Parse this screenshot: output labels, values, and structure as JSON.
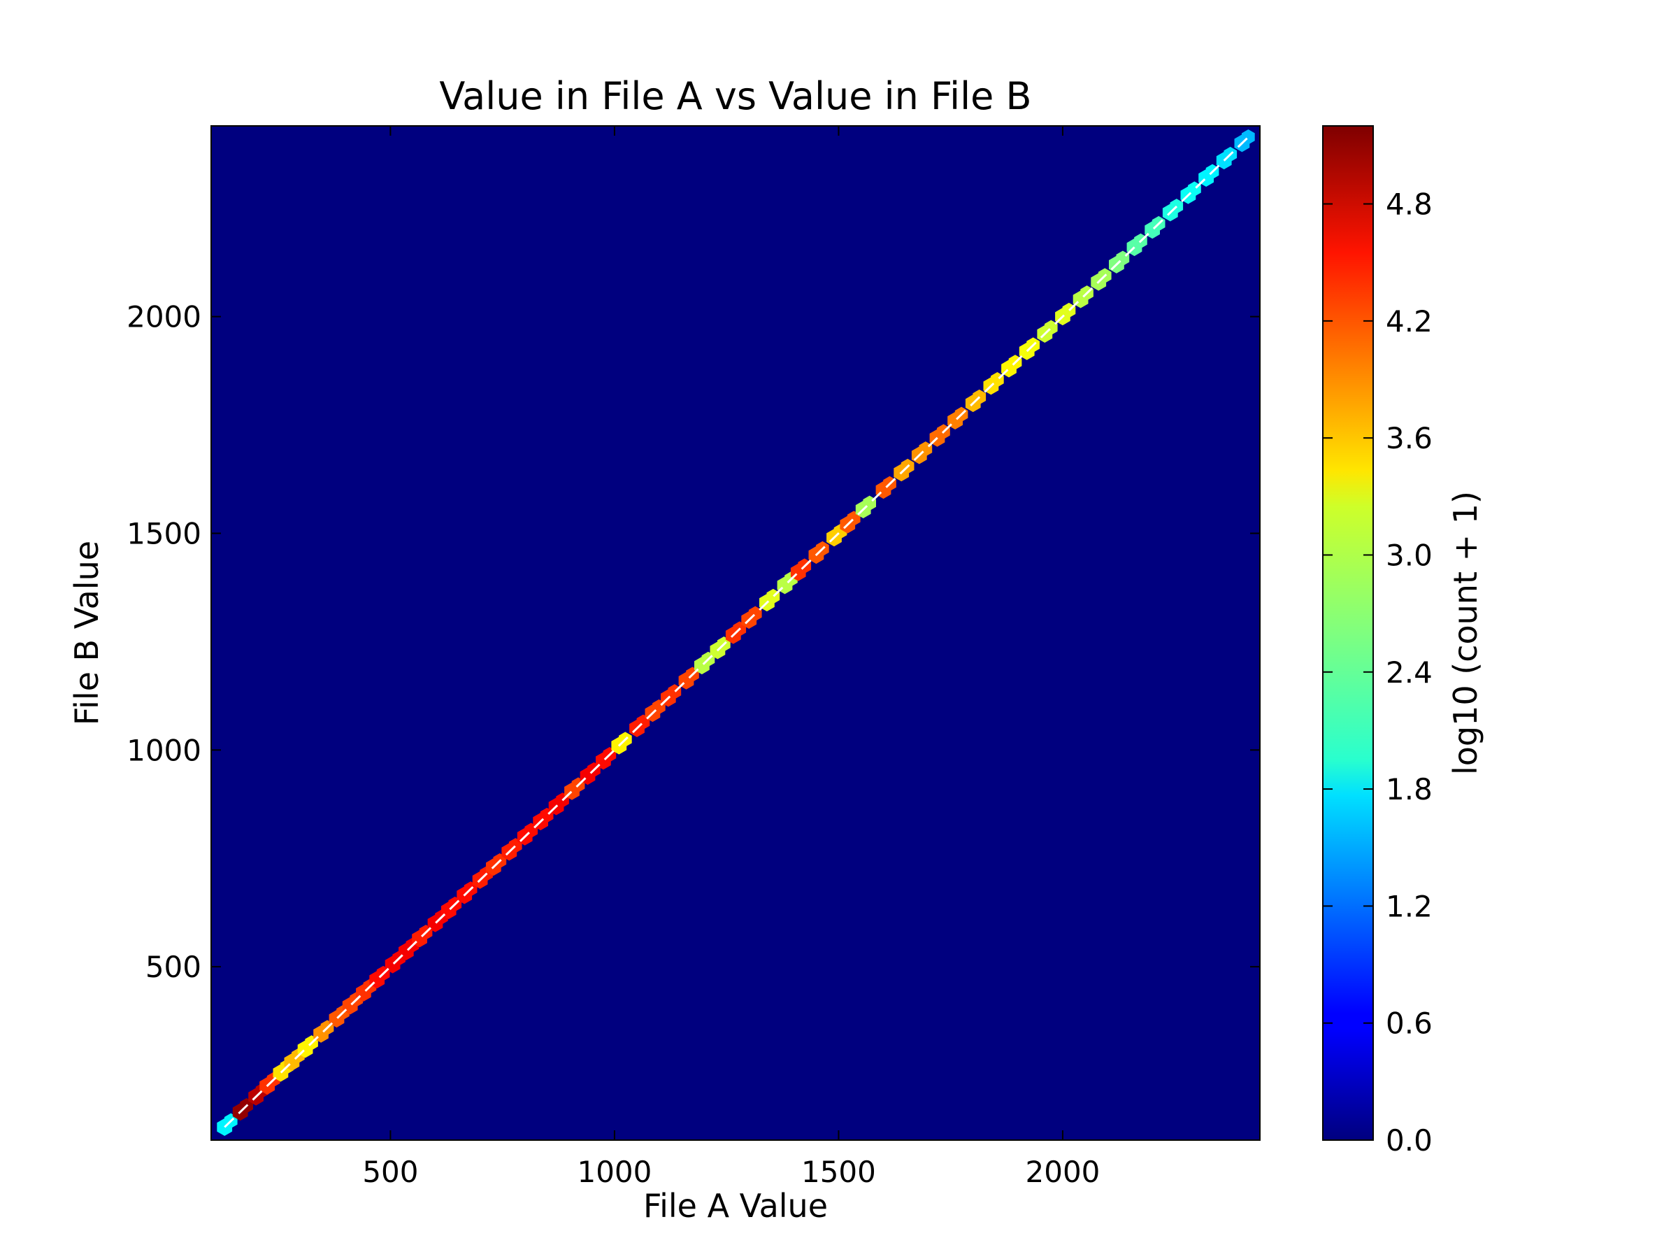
{
  "chart_data": {
    "type": "heatmap",
    "subtype": "hexbin",
    "title": "Value in File A vs Value in File B",
    "xlabel": "File A Value",
    "ylabel": "File B Value",
    "xlim": [
      100,
      2440
    ],
    "ylim": [
      100,
      2440
    ],
    "xticks": [
      500,
      1000,
      1500,
      2000
    ],
    "yticks": [
      500,
      1000,
      1500,
      2000
    ],
    "grid": false,
    "background_color": "#00007f",
    "colormap": "jet",
    "colorbar": {
      "label": "log10 (count + 1)",
      "range": [
        0,
        5.2
      ],
      "ticks": [
        "0.0",
        "0.6",
        "1.2",
        "1.8",
        "2.4",
        "3.0",
        "3.6",
        "4.2",
        "4.8"
      ]
    },
    "reference_line": {
      "style": "white dashed",
      "from": [
        130,
        130
      ],
      "to": [
        2420,
        2420
      ]
    },
    "points": [
      [
        130,
        1.9
      ],
      [
        165,
        5.1
      ],
      [
        200,
        4.9
      ],
      [
        225,
        4.3
      ],
      [
        255,
        3.4
      ],
      [
        280,
        3.6
      ],
      [
        310,
        3.3
      ],
      [
        345,
        3.8
      ],
      [
        380,
        4.1
      ],
      [
        410,
        4.2
      ],
      [
        440,
        4.3
      ],
      [
        470,
        4.5
      ],
      [
        505,
        4.6
      ],
      [
        535,
        4.6
      ],
      [
        565,
        4.4
      ],
      [
        600,
        4.6
      ],
      [
        630,
        4.5
      ],
      [
        665,
        4.5
      ],
      [
        700,
        4.4
      ],
      [
        730,
        4.3
      ],
      [
        765,
        4.4
      ],
      [
        800,
        4.5
      ],
      [
        835,
        4.5
      ],
      [
        870,
        4.6
      ],
      [
        905,
        4.2
      ],
      [
        940,
        4.6
      ],
      [
        975,
        4.5
      ],
      [
        1010,
        3.3
      ],
      [
        1050,
        4.4
      ],
      [
        1085,
        4.2
      ],
      [
        1120,
        4.3
      ],
      [
        1160,
        4.2
      ],
      [
        1195,
        2.9
      ],
      [
        1230,
        3.0
      ],
      [
        1265,
        4.3
      ],
      [
        1300,
        4.2
      ],
      [
        1340,
        3.1
      ],
      [
        1380,
        2.9
      ],
      [
        1410,
        4.3
      ],
      [
        1450,
        4.1
      ],
      [
        1490,
        3.5
      ],
      [
        1520,
        4.1
      ],
      [
        1555,
        2.8
      ],
      [
        1600,
        4.1
      ],
      [
        1640,
        3.7
      ],
      [
        1680,
        3.8
      ],
      [
        1720,
        4.0
      ],
      [
        1760,
        3.9
      ],
      [
        1800,
        3.6
      ],
      [
        1840,
        3.4
      ],
      [
        1880,
        3.3
      ],
      [
        1920,
        3.2
      ],
      [
        1960,
        3.0
      ],
      [
        2000,
        3.1
      ],
      [
        2040,
        2.9
      ],
      [
        2080,
        2.8
      ],
      [
        2120,
        2.6
      ],
      [
        2160,
        2.4
      ],
      [
        2200,
        2.3
      ],
      [
        2240,
        2.1
      ],
      [
        2280,
        2.0
      ],
      [
        2320,
        1.9
      ],
      [
        2360,
        1.8
      ],
      [
        2400,
        1.6
      ]
    ]
  }
}
